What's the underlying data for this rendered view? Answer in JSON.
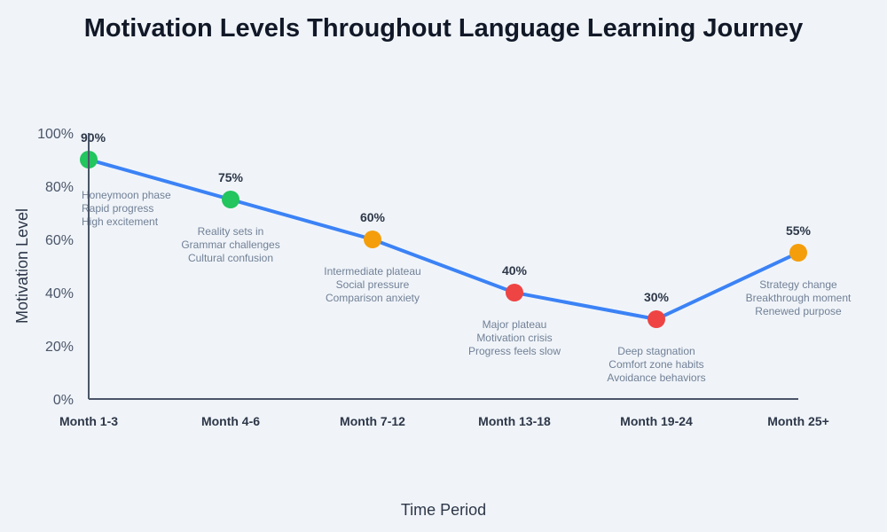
{
  "chart_data": {
    "type": "line",
    "title": "Motivation Levels Throughout Language Learning Journey",
    "xlabel": "Time Period",
    "ylabel": "Motivation Level",
    "ylim": [
      0,
      100
    ],
    "y_ticks": [
      "0%",
      "20%",
      "40%",
      "60%",
      "80%",
      "100%"
    ],
    "grid": false,
    "categories": [
      "Month 1-3",
      "Month 4-6",
      "Month 7-12",
      "Month 13-18",
      "Month 19-24",
      "Month 25+"
    ],
    "values": [
      90,
      75,
      60,
      40,
      30,
      55
    ],
    "value_labels": [
      "90%",
      "75%",
      "60%",
      "40%",
      "30%",
      "55%"
    ],
    "point_colors": [
      "#22c55e",
      "#22c55e",
      "#f59e0b",
      "#ef4444",
      "#ef4444",
      "#f59e0b"
    ],
    "line_color": "#3b82f6",
    "annotations": [
      [
        "Honeymoon phase",
        "Rapid progress",
        "High excitement"
      ],
      [
        "Reality sets in",
        "Grammar challenges",
        "Cultural confusion"
      ],
      [
        "Intermediate plateau",
        "Social pressure",
        "Comparison anxiety"
      ],
      [
        "Major plateau",
        "Motivation crisis",
        "Progress feels slow"
      ],
      [
        "Deep stagnation",
        "Comfort zone habits",
        "Avoidance behaviors"
      ],
      [
        "Strategy change",
        "Breakthrough moment",
        "Renewed purpose"
      ]
    ]
  }
}
